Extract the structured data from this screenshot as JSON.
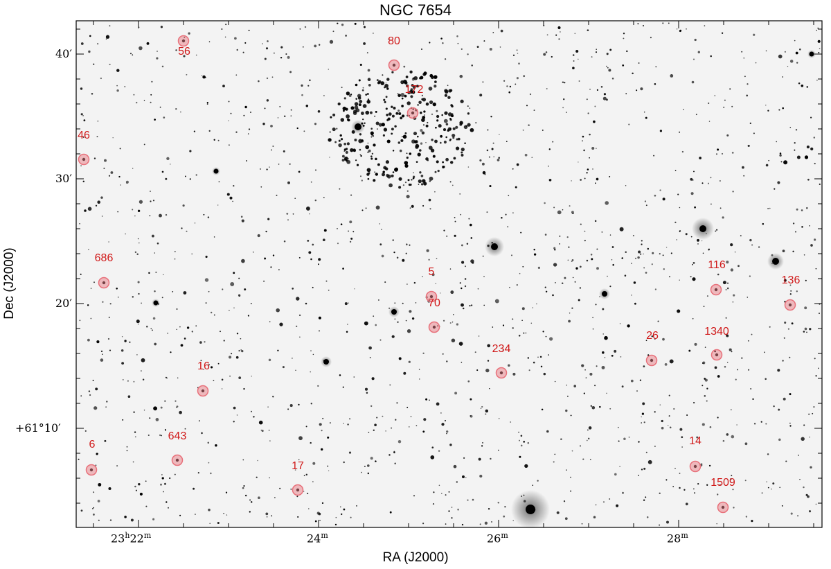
{
  "title": "NGC 7654",
  "axes": {
    "xlabel": "RA (J2000)",
    "ylabel": "Dec (J2000)",
    "x_ticks": [
      {
        "main": "23",
        "sup1": "h",
        "mid": "22",
        "sup2": "m"
      },
      {
        "main": "24",
        "sup1": "m"
      },
      {
        "main": "26",
        "sup1": "m"
      },
      {
        "main": "28",
        "sup1": "m"
      }
    ],
    "y_ticks": [
      {
        "text": "40′"
      },
      {
        "text": "30′"
      },
      {
        "text": "20′"
      },
      {
        "text": "+61°10′"
      }
    ]
  },
  "highlight_color": "#e8707a",
  "label_color": "#d01818",
  "marked_stars": [
    {
      "id": "56"
    },
    {
      "id": "80"
    },
    {
      "id": "172"
    },
    {
      "id": "46"
    },
    {
      "id": "686"
    },
    {
      "id": "5"
    },
    {
      "id": "70"
    },
    {
      "id": "116"
    },
    {
      "id": "136"
    },
    {
      "id": "26"
    },
    {
      "id": "1340"
    },
    {
      "id": "234"
    },
    {
      "id": "16"
    },
    {
      "id": "6"
    },
    {
      "id": "643"
    },
    {
      "id": "17"
    },
    {
      "id": "14"
    },
    {
      "id": "1509"
    }
  ]
}
